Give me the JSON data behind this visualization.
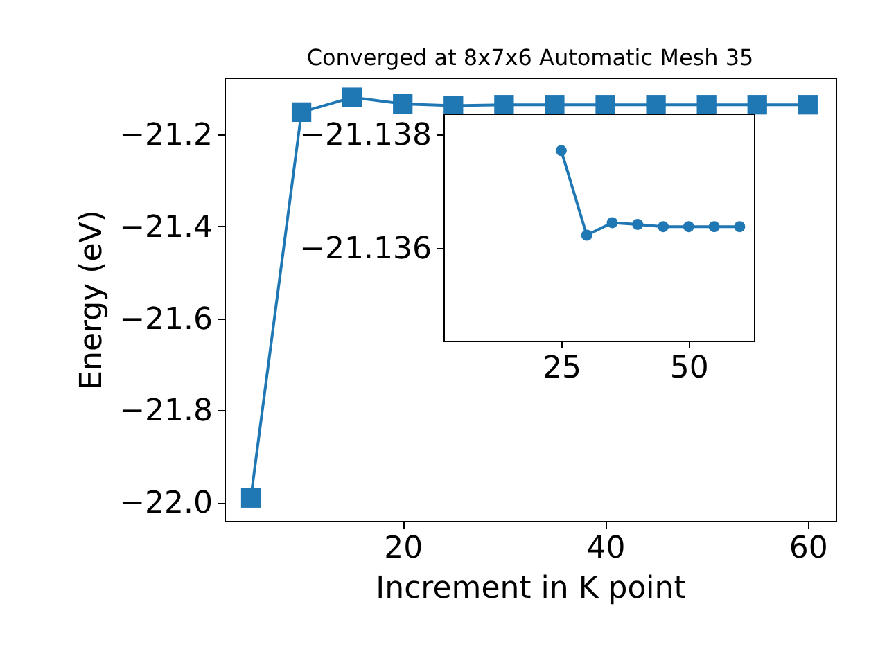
{
  "chart_data": [
    {
      "type": "line",
      "title": "Converged at 8x7x6 Automatic Mesh 35",
      "xlabel": "Increment in K point",
      "ylabel": "Energy (eV)",
      "marker": "square",
      "x": [
        5,
        10,
        15,
        20,
        25,
        30,
        35,
        40,
        45,
        50,
        55,
        60
      ],
      "series": [
        {
          "color": "#1f77b4",
          "values": [
            -21.99,
            -21.152,
            -21.12,
            -21.134,
            -21.138,
            -21.136,
            -21.136,
            -21.136,
            -21.136,
            -21.136,
            -21.136,
            -21.136
          ]
        }
      ],
      "xlim": [
        2.4,
        62.75
      ],
      "ylim": [
        -22.04,
        -21.077
      ],
      "xticks": [
        20,
        40,
        60
      ],
      "yticks": [
        {
          "value": -22.0,
          "label": "−22.0"
        },
        {
          "value": -21.8,
          "label": "−21.8"
        },
        {
          "value": -21.6,
          "label": "−21.6"
        },
        {
          "value": -21.4,
          "label": "−21.4"
        },
        {
          "value": -21.2,
          "label": "−21.2"
        }
      ]
    },
    {
      "type": "line",
      "marker": "circle",
      "x": [
        25,
        30,
        35,
        40,
        45,
        50,
        55,
        60
      ],
      "series": [
        {
          "color": "#1f77b4",
          "values": [
            -21.13772,
            -21.13623,
            -21.13645,
            -21.13642,
            -21.13638,
            -21.13638,
            -21.13638,
            -21.13638
          ]
        }
      ],
      "xlim": [
        1.9,
        62.8
      ],
      "ylim": [
        -21.13437,
        -21.13837
      ],
      "xticks": [
        25,
        50
      ],
      "yticks": [
        {
          "value": -21.138,
          "label": "−21.138"
        },
        {
          "value": -21.136,
          "label": "−21.136"
        }
      ]
    }
  ]
}
